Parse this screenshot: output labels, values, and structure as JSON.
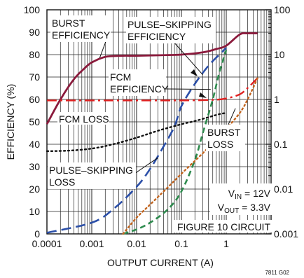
{
  "chart_data": {
    "type": "line",
    "x_scale": "log",
    "xlim": [
      0.0001,
      10
    ],
    "ylim_left": [
      0,
      100
    ],
    "y2_scale": "log",
    "y2lim": [
      0.001,
      100
    ],
    "grid": true,
    "xlabel": "OUTPUT CURRENT (A)",
    "ylabel": "EFFICIENCY (%)",
    "x_ticks": [
      "0.0001",
      "0.001",
      "0.01",
      "0.1",
      "1"
    ],
    "y_ticks_left": [
      "0",
      "10",
      "20",
      "30",
      "40",
      "50",
      "60",
      "70",
      "80",
      "90",
      "100"
    ],
    "y_ticks_right": [
      "0.001",
      "0.01",
      "0.1",
      "1",
      "10",
      "100"
    ],
    "annotations": {
      "burst_eff": [
        "BURST",
        "EFFICIENCY"
      ],
      "ps_eff": [
        "PULSE–SKIPPING",
        "EFFICIENCY"
      ],
      "fcm_eff": [
        "FCM",
        "EFFICIENCY"
      ],
      "fcm_loss": "FCM LOSS",
      "burst_loss": [
        "BURST",
        "LOSS"
      ],
      "ps_loss": [
        "PULSE–SKIPPING",
        "LOSS"
      ],
      "vin": {
        "main": "V",
        "sub": "IN",
        "value": " = 12V"
      },
      "vout": {
        "main": "V",
        "sub": "OUT",
        "value": " = 3.3V"
      },
      "figure": "FIGURE 10 CIRCUIT",
      "code": "7811 G02"
    },
    "series": [
      {
        "axis": "left",
        "color": "#8b1a3c",
        "dash": "solid",
        "x": [
          0.0001,
          0.0002,
          0.0004,
          0.0007,
          0.001,
          0.002,
          0.005,
          0.01,
          0.05,
          0.1,
          0.3,
          0.6,
          1,
          2,
          3,
          5
        ],
        "y": [
          49,
          60,
          69,
          74,
          76.5,
          79,
          79.5,
          79.5,
          79.8,
          80,
          81,
          82.5,
          84,
          89,
          89.5,
          89.5
        ]
      },
      {
        "axis": "left",
        "color": "#2b4fa8",
        "dash": "long",
        "x": [
          0.0001,
          0.001,
          0.003,
          0.01,
          0.02,
          0.04,
          0.07,
          0.1,
          0.2,
          0.4,
          0.7,
          1
        ],
        "y": [
          0.5,
          5,
          11,
          21,
          29,
          39,
          48,
          57,
          67,
          75,
          80,
          83
        ]
      },
      {
        "axis": "left",
        "color": "#2e8b4e",
        "dash": "medium",
        "x": [
          0.005,
          0.01,
          0.02,
          0.05,
          0.1,
          0.2,
          0.3,
          0.5,
          0.7,
          1
        ],
        "y": [
          0,
          2,
          5,
          11,
          19,
          33,
          45,
          60,
          72,
          82
        ]
      },
      {
        "axis": "right",
        "color": "#e02020",
        "dash": "dashdot",
        "x": [
          0.0001,
          0.001,
          0.01,
          0.1,
          0.5,
          1,
          2,
          3,
          5
        ],
        "y": [
          0.95,
          0.95,
          0.95,
          0.95,
          0.98,
          1.05,
          1.3,
          1.8,
          3
        ]
      },
      {
        "axis": "right",
        "color": "#111111",
        "dash": "dot",
        "x": [
          0.0001,
          0.0003,
          0.001,
          0.003,
          0.01,
          0.03,
          0.1,
          0.2,
          0.4,
          0.7,
          1
        ],
        "y": [
          0.07,
          0.072,
          0.08,
          0.1,
          0.14,
          0.2,
          0.28,
          0.33,
          0.4,
          0.47,
          0.5
        ]
      },
      {
        "axis": "right",
        "color": "#c2641e",
        "dash": "dot",
        "x": [
          0.005,
          0.01,
          0.02,
          0.05,
          0.1,
          0.3,
          0.6,
          1,
          2,
          3,
          5
        ],
        "y": [
          0.001,
          0.0023,
          0.0045,
          0.011,
          0.022,
          0.063,
          0.13,
          0.22,
          0.5,
          1,
          3
        ]
      }
    ]
  }
}
